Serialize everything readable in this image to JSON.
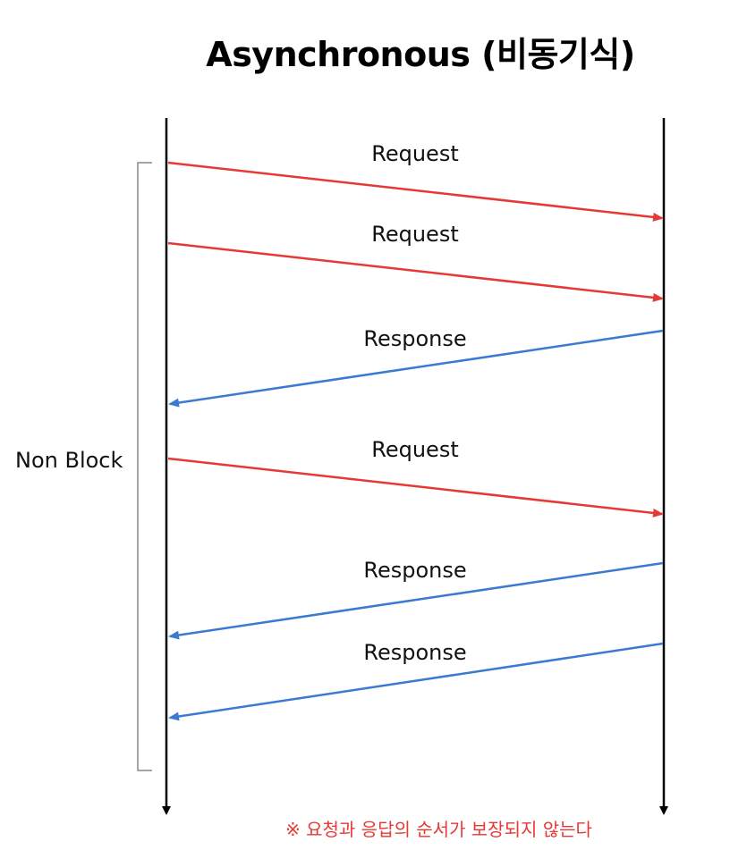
{
  "title": "Asynchronous (비동기식)",
  "side_label": "Non Block",
  "note": "※ 요청과 응답의 순서가 보장되지 않는다",
  "colors": {
    "request": "#e53935",
    "response": "#3b7ad1",
    "timeline": "#000000",
    "bracket": "#888888",
    "note": "#e53935"
  },
  "messages": [
    {
      "type": "request",
      "label": "Request"
    },
    {
      "type": "request",
      "label": "Request"
    },
    {
      "type": "response",
      "label": "Response"
    },
    {
      "type": "request",
      "label": "Request"
    },
    {
      "type": "response",
      "label": "Response"
    },
    {
      "type": "response",
      "label": "Response"
    }
  ]
}
